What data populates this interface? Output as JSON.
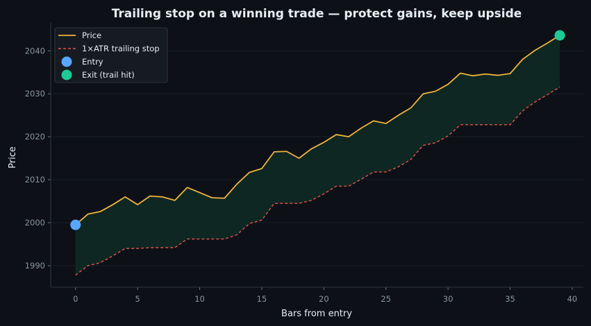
{
  "chart_data": {
    "type": "line",
    "title": "Trailing stop on a winning trade — protect gains, keep upside",
    "xlabel": "Bars from entry",
    "ylabel": "Price",
    "xlim": [
      -2,
      40.9
    ],
    "ylim": [
      1985,
      2046.5
    ],
    "x_ticks": [
      0,
      5,
      10,
      15,
      20,
      25,
      30,
      35,
      40
    ],
    "y_ticks": [
      1990,
      2000,
      2010,
      2020,
      2030,
      2040
    ],
    "grid": "horizontal",
    "legend_position": "top-left",
    "x": [
      0,
      1,
      2,
      3,
      4,
      5,
      6,
      7,
      8,
      9,
      10,
      11,
      12,
      13,
      14,
      15,
      16,
      17,
      18,
      19,
      20,
      21,
      22,
      23,
      24,
      25,
      26,
      27,
      28,
      29,
      30,
      31,
      32,
      33,
      34,
      35,
      36,
      37,
      38,
      39
    ],
    "series": [
      {
        "name": "Price",
        "style": "solid",
        "color": "#f0b43c",
        "values": [
          1999.5,
          2002.0,
          2002.6,
          2004.2,
          2006.0,
          2004.2,
          2006.2,
          2006.0,
          2005.2,
          2008.2,
          2007.0,
          2005.8,
          2005.7,
          2009.0,
          2011.7,
          2012.6,
          2016.5,
          2016.6,
          2015.0,
          2017.2,
          2018.7,
          2020.5,
          2020.0,
          2022.0,
          2023.7,
          2023.1,
          2025.0,
          2026.7,
          2030.0,
          2030.6,
          2032.2,
          2034.8,
          2034.2,
          2034.6,
          2034.3,
          2034.7,
          2038.0,
          2040.1,
          2041.8,
          2043.6
        ]
      },
      {
        "name": "1×ATR trailing stop",
        "style": "dashed",
        "color": "#e5534b",
        "values": [
          1987.8,
          1990.0,
          1990.7,
          1992.3,
          1994.0,
          1994.0,
          1994.2,
          1994.2,
          1994.2,
          1996.2,
          1996.2,
          1996.2,
          1996.2,
          1997.2,
          1999.8,
          2000.6,
          2004.5,
          2004.5,
          2004.5,
          2005.2,
          2006.7,
          2008.5,
          2008.5,
          2010.1,
          2011.8,
          2011.8,
          2013.0,
          2014.7,
          2018.0,
          2018.6,
          2020.2,
          2022.8,
          2022.8,
          2022.8,
          2022.8,
          2022.8,
          2026.0,
          2028.1,
          2029.8,
          2031.6
        ]
      }
    ],
    "markers": [
      {
        "name": "Entry",
        "x": 0,
        "y": 1999.5,
        "color": "#58a6ff"
      },
      {
        "name": "Exit (trail hit)",
        "x": 39,
        "y": 2043.6,
        "color": "#1ec995"
      }
    ],
    "shaded_area": {
      "between": [
        "Price",
        "1×ATR trailing stop"
      ],
      "color": "#0f2a25"
    }
  }
}
